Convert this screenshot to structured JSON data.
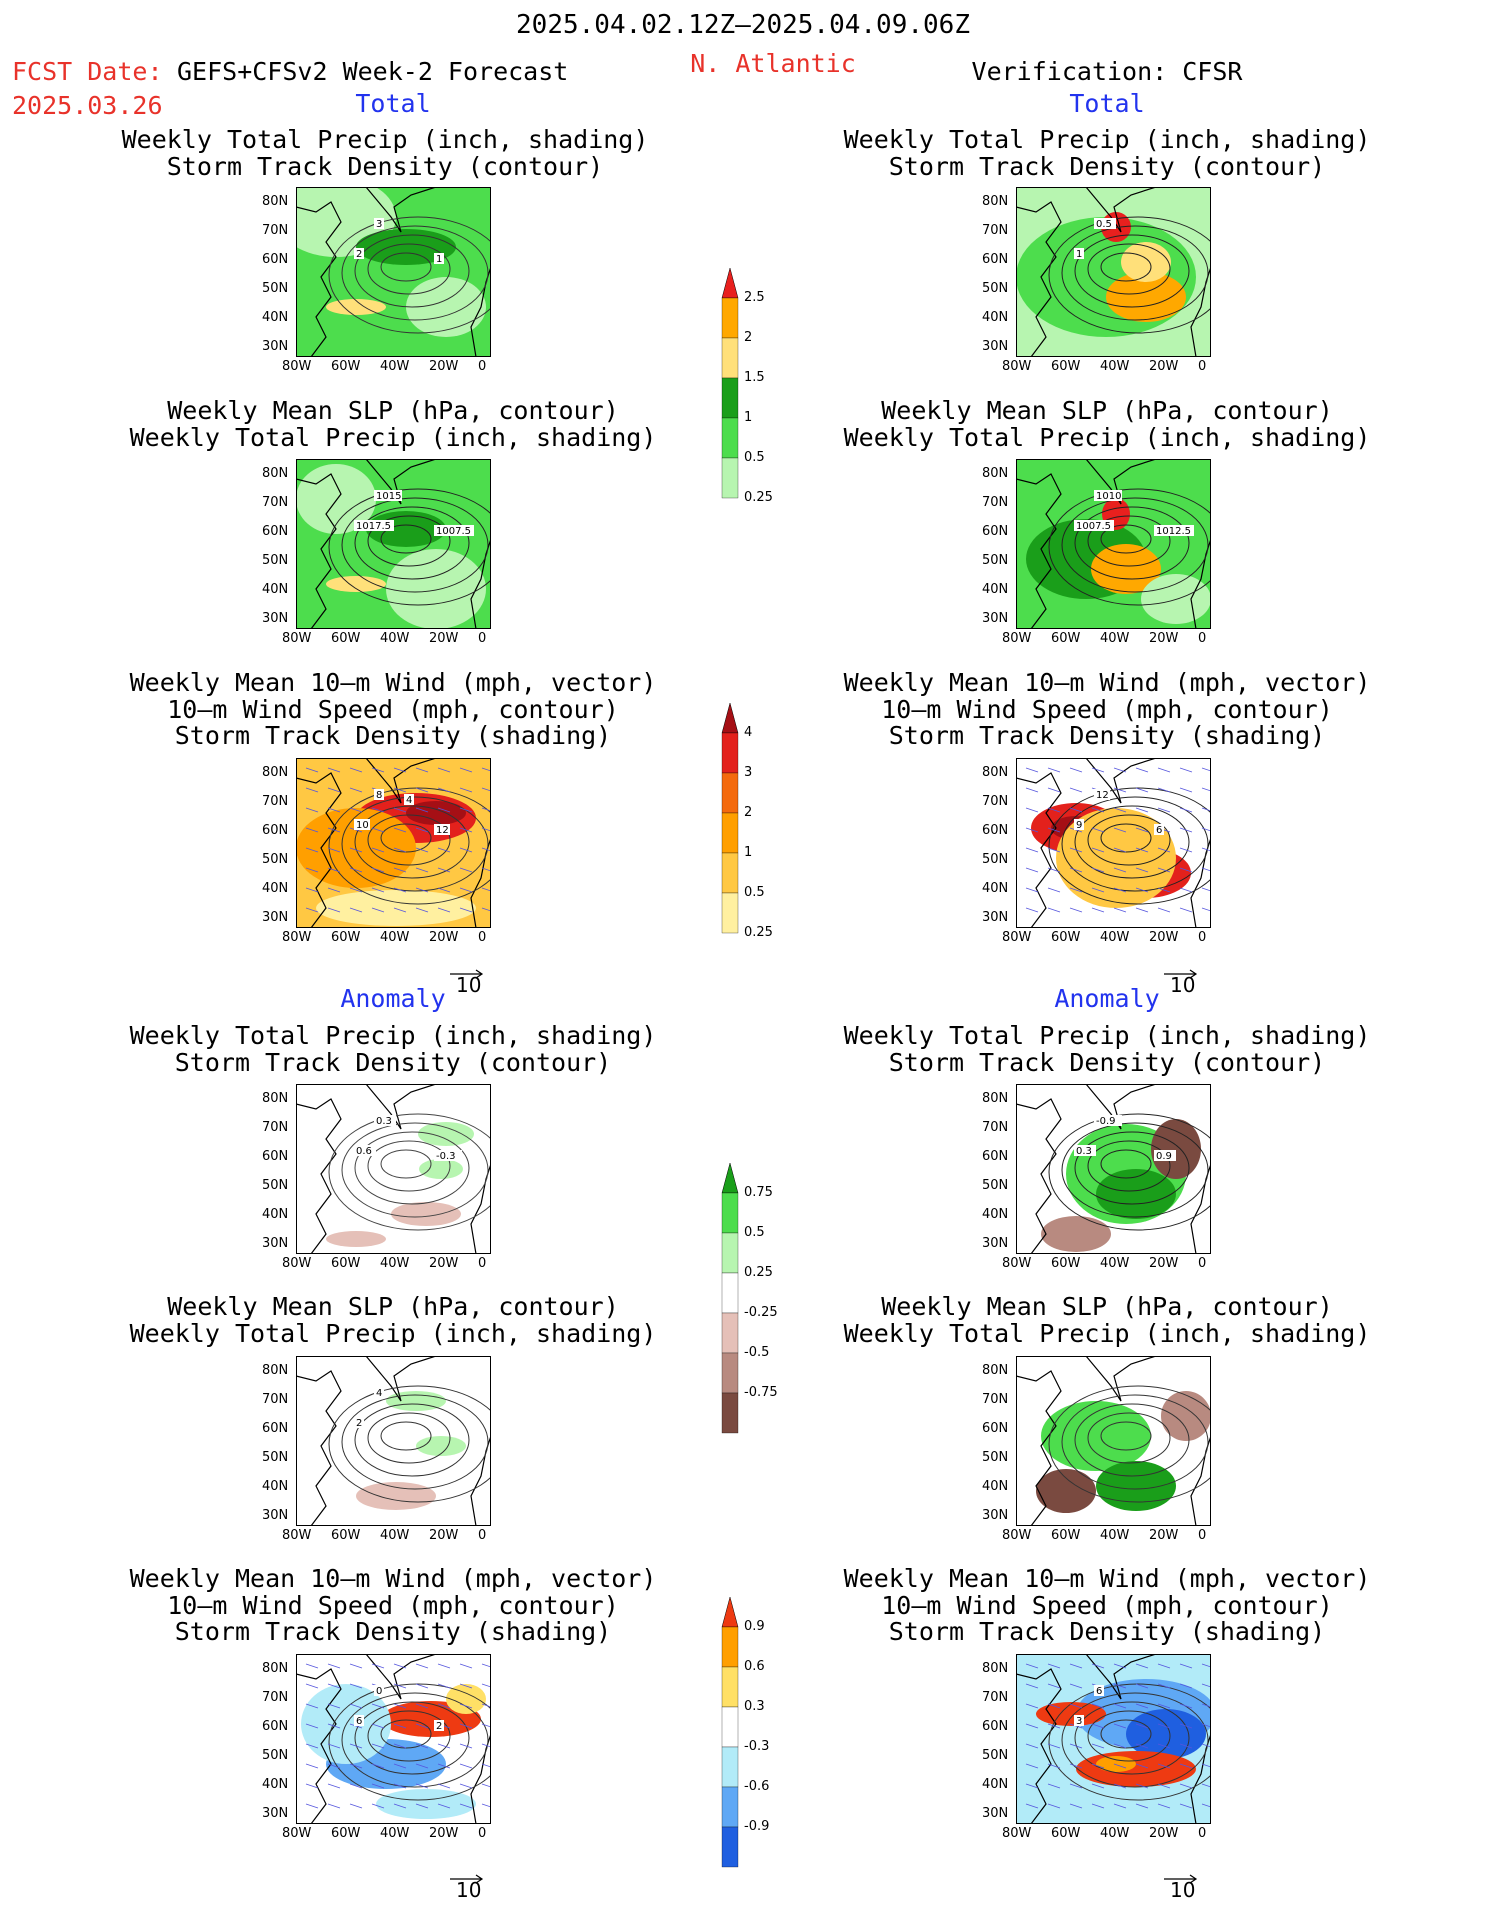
{
  "header": {
    "period": "2025.04.02.12Z–2025.04.09.06Z",
    "fcst_label": "FCST Date:",
    "model": "GEFS+CFSv2 Week-2 Forecast",
    "fcst_date": "2025.03.26",
    "region": "N. Atlantic",
    "verification": "Verification: CFSR"
  },
  "section_labels": {
    "total": "Total",
    "anomaly": "Anomaly"
  },
  "titles": {
    "precip_storm": [
      "Weekly Total Precip (inch, shading)",
      "Storm Track Density (contour)"
    ],
    "slp_precip": [
      "Weekly Mean SLP (hPa, contour)",
      "Weekly Total Precip (inch, shading)"
    ],
    "wind_storm": [
      "Weekly Mean 10–m Wind (mph, vector)",
      "10–m Wind Speed (mph, contour)",
      "Storm Track Density (shading)"
    ]
  },
  "axes": {
    "lat_ticks": [
      "80N",
      "70N",
      "60N",
      "50N",
      "40N",
      "30N"
    ],
    "lon_ticks": [
      "80W",
      "60W",
      "40W",
      "20W",
      "0"
    ]
  },
  "vector_ref": "10",
  "colorbars": {
    "precip_total": {
      "labels": [
        "2.5",
        "2",
        "1.5",
        "1",
        "0.5",
        "0.25"
      ],
      "colors": [
        "#e8201e",
        "#ffa800",
        "#ffe07a",
        "#1a9e1a",
        "#4ddd4d",
        "#b7f5b0"
      ]
    },
    "storm_total": {
      "labels": [
        "4",
        "3",
        "2",
        "1",
        "0.5",
        "0.25"
      ],
      "colors": [
        "#a50f15",
        "#e3211c",
        "#f46a0d",
        "#ff9f00",
        "#ffc843",
        "#fff0a0"
      ]
    },
    "precip_anom": {
      "labels": [
        "0.75",
        "0.5",
        "0.25",
        "-0.25",
        "-0.5",
        "-0.75"
      ],
      "colors": [
        "#1a9e1a",
        "#4ddd4d",
        "#b7f5b0",
        "#ffffff",
        "#e5c0b8",
        "#b88a80",
        "#7a4a40"
      ]
    },
    "storm_anom": {
      "labels": [
        "0.9",
        "0.6",
        "0.3",
        "-0.3",
        "-0.6",
        "-0.9"
      ],
      "colors": [
        "#ee3a12",
        "#ff9f00",
        "#ffe066",
        "#ffffff",
        "#b2ebf8",
        "#5fa8f5",
        "#1f5fe0"
      ]
    }
  },
  "panels": [
    {
      "id": "l1",
      "contour_labels": [
        "2",
        "3",
        "1"
      ]
    },
    {
      "id": "l2",
      "contour_labels": [
        "1017.5",
        "1015",
        "1007.5"
      ]
    },
    {
      "id": "l3",
      "contour_labels": [
        "10",
        "8",
        "12",
        "4"
      ]
    },
    {
      "id": "l4",
      "contour_labels": [
        "0.6",
        "0.3",
        "-0.3"
      ]
    },
    {
      "id": "l5",
      "contour_labels": [
        "2",
        "4"
      ]
    },
    {
      "id": "l6",
      "contour_labels": [
        "6",
        "0",
        "2"
      ]
    },
    {
      "id": "r1",
      "contour_labels": [
        "1",
        "0.5"
      ]
    },
    {
      "id": "r2",
      "contour_labels": [
        "1007.5",
        "1010",
        "1012.5"
      ]
    },
    {
      "id": "r3",
      "contour_labels": [
        "9",
        "12",
        "6"
      ]
    },
    {
      "id": "r4",
      "contour_labels": [
        "0.3",
        "-0.9",
        "0.9"
      ]
    },
    {
      "id": "r5",
      "contour_labels": []
    },
    {
      "id": "r6",
      "contour_labels": [
        "3",
        "6"
      ]
    }
  ],
  "chart_data": {
    "type": "heatmap",
    "title": "2025.04.02.12Z–2025.04.09.06Z",
    "region": "N. Atlantic",
    "lat_range": [
      25,
      85
    ],
    "lon_range": [
      -80,
      0
    ],
    "panels": [
      {
        "column": "GEFS+CFSv2 Week-2 Forecast",
        "section": "Total",
        "fields": [
          "Weekly Total Precip (inch, shading)",
          "Storm Track Density (contour)"
        ]
      },
      {
        "column": "GEFS+CFSv2 Week-2 Forecast",
        "section": "Total",
        "fields": [
          "Weekly Mean SLP (hPa, contour)",
          "Weekly Total Precip (inch, shading)"
        ]
      },
      {
        "column": "GEFS+CFSv2 Week-2 Forecast",
        "section": "Total",
        "fields": [
          "Weekly Mean 10–m Wind (mph, vector)",
          "10–m Wind Speed (mph, contour)",
          "Storm Track Density (shading)"
        ]
      },
      {
        "column": "GEFS+CFSv2 Week-2 Forecast",
        "section": "Anomaly",
        "fields": [
          "Weekly Total Precip (inch, shading)",
          "Storm Track Density (contour)"
        ]
      },
      {
        "column": "GEFS+CFSv2 Week-2 Forecast",
        "section": "Anomaly",
        "fields": [
          "Weekly Mean SLP (hPa, contour)",
          "Weekly Total Precip (inch, shading)"
        ]
      },
      {
        "column": "GEFS+CFSv2 Week-2 Forecast",
        "section": "Anomaly",
        "fields": [
          "Weekly Mean 10–m Wind (mph, vector)",
          "10–m Wind Speed (mph, contour)",
          "Storm Track Density (shading)"
        ]
      },
      {
        "column": "Verification: CFSR",
        "section": "Total",
        "fields": [
          "Weekly Total Precip (inch, shading)",
          "Storm Track Density (contour)"
        ]
      },
      {
        "column": "Verification: CFSR",
        "section": "Total",
        "fields": [
          "Weekly Mean SLP (hPa, contour)",
          "Weekly Total Precip (inch, shading)"
        ]
      },
      {
        "column": "Verification: CFSR",
        "section": "Total",
        "fields": [
          "Weekly Mean 10–m Wind (mph, vector)",
          "10–m Wind Speed (mph, contour)",
          "Storm Track Density (shading)"
        ]
      },
      {
        "column": "Verification: CFSR",
        "section": "Anomaly",
        "fields": [
          "Weekly Total Precip (inch, shading)",
          "Storm Track Density (contour)"
        ]
      },
      {
        "column": "Verification: CFSR",
        "section": "Anomaly",
        "fields": [
          "Weekly Mean SLP (hPa, contour)",
          "Weekly Total Precip (inch, shading)"
        ]
      },
      {
        "column": "Verification: CFSR",
        "section": "Anomaly",
        "fields": [
          "Weekly Mean 10–m Wind (mph, vector)",
          "10–m Wind Speed (mph, contour)",
          "Storm Track Density (shading)"
        ]
      }
    ]
  }
}
